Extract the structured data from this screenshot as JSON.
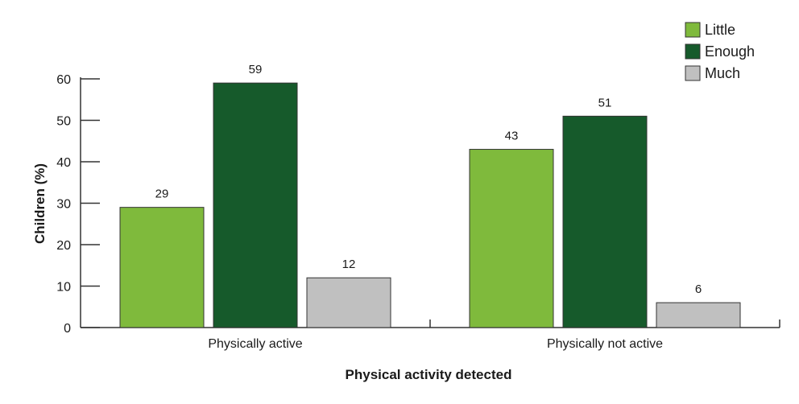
{
  "chart_data": {
    "type": "bar",
    "title": "",
    "xlabel": "Physical activity detected",
    "ylabel": "Children (%)",
    "categories": [
      "Physically active",
      "Physically not active"
    ],
    "series": [
      {
        "name": "Little",
        "values": [
          29,
          43
        ],
        "color": "#7fba3c"
      },
      {
        "name": "Enough",
        "values": [
          59,
          51
        ],
        "color": "#165a2b"
      },
      {
        "name": "Much",
        "values": [
          12,
          6
        ],
        "color": "#c0c0c0"
      }
    ],
    "ylim": [
      0,
      60
    ],
    "yticks": [
      "0",
      "10",
      "20",
      "30",
      "40",
      "50",
      "60"
    ],
    "data_labels": [
      [
        "29",
        "43"
      ],
      [
        "59",
        "51"
      ],
      [
        "12",
        "6"
      ]
    ],
    "grid": false,
    "legend_position": "top-right"
  }
}
